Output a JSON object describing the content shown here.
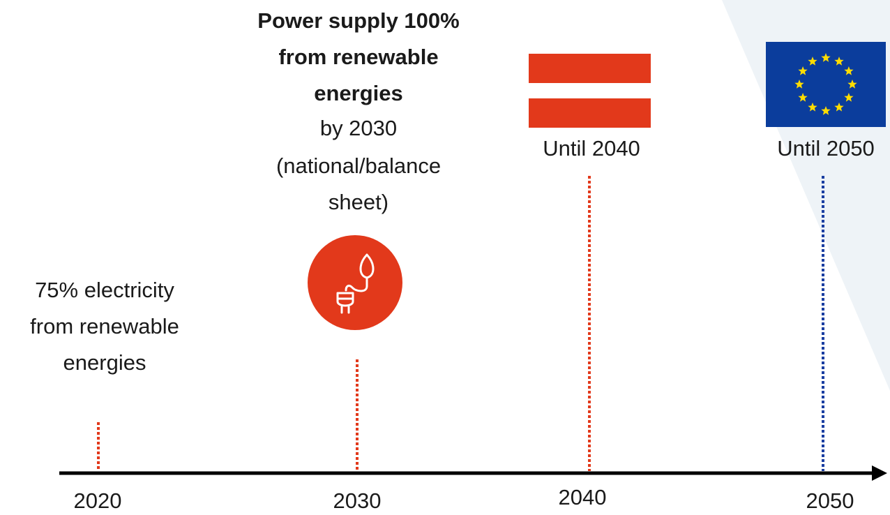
{
  "milestones": [
    {
      "year": "2020",
      "text": [
        "75% electricity",
        "from renewable",
        "energies"
      ]
    },
    {
      "year": "2030",
      "heading": [
        "Power supply 100%",
        "from renewable",
        "energies"
      ],
      "text": [
        "by 2030",
        "(national/balance",
        "sheet)"
      ]
    },
    {
      "year": "2040",
      "text": [
        "Until 2040"
      ]
    },
    {
      "year": "2050",
      "text": [
        "Until 2050"
      ]
    }
  ]
}
